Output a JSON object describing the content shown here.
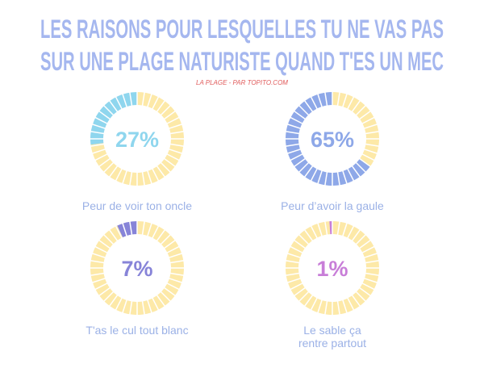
{
  "title": [
    "LES RAISONS POUR LESQUELLES TU NE VAS PAS",
    "SUR UNE PLAGE NATURISTE QUAND T'ES UN MEC"
  ],
  "subtitle": "LA PLAGE - PAR TOPITO.COM",
  "chart_data": [
    {
      "type": "pie",
      "categories": [
        "Peur de voir ton oncle"
      ],
      "values": [
        27
      ],
      "value_labels": [
        "27%"
      ],
      "color": "#8fd6ee",
      "track_color": "#fde9a8"
    },
    {
      "type": "pie",
      "categories": [
        "Peur d’avoir la gaule"
      ],
      "values": [
        65
      ],
      "value_labels": [
        "65%"
      ],
      "color": "#8ea8e8",
      "track_color": "#fde9a8"
    },
    {
      "type": "pie",
      "categories": [
        "T'as le cul tout blanc"
      ],
      "values": [
        7
      ],
      "value_labels": [
        "7%"
      ],
      "color": "#8784d8",
      "track_color": "#fde9a8"
    },
    {
      "type": "pie",
      "categories": [
        "Le sable ça rentre partout"
      ],
      "values": [
        1
      ],
      "value_labels": [
        "1%"
      ],
      "color": "#c87ed8",
      "track_color": "#fde9a8"
    }
  ]
}
